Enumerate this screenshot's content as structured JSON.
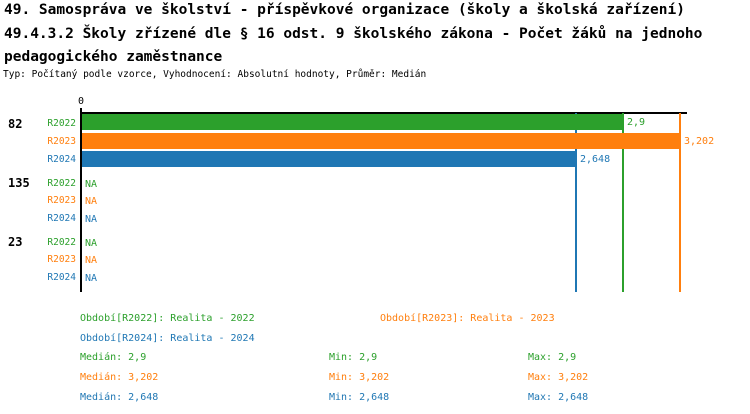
{
  "title": {
    "line1": "49. Samospráva ve školství - příspěvkové organizace (školy a školská zařízení)",
    "line2": "49.4.3.2 Školy zřízené dle § 16 odst. 9 školského zákona - Počet žáků na jednoho",
    "line3": "pedagogického zaměstnance",
    "meta": "Typ: Počítaný podle vzorce, Vyhodnocení: Absolutní hodnoty, Průměr: Medián"
  },
  "colors": {
    "r2022_green": "#2ca02c",
    "r2023_orange": "#ff7f0e",
    "r2024_blue": "#1f77b4",
    "axis_black": "#000000"
  },
  "chart_data": {
    "type": "bar",
    "orientation": "horizontal",
    "x_origin_label": "0",
    "xlim": [
      0,
      3.25
    ],
    "grid": false,
    "legend_position": "bottom",
    "series": [
      {
        "name": "R2022",
        "color": "#2ca02c",
        "median": 2.9,
        "min": 2.9,
        "max": 2.9
      },
      {
        "name": "R2023",
        "color": "#ff7f0e",
        "median": 3.202,
        "min": 3.202,
        "max": 3.202
      },
      {
        "name": "R2024",
        "color": "#1f77b4",
        "median": 2.648,
        "min": 2.648,
        "max": 2.648
      }
    ],
    "groups": [
      {
        "category": "82",
        "rows": [
          {
            "series": "R2022",
            "value": 2.9,
            "value_label": "2,9"
          },
          {
            "series": "R2023",
            "value": 3.202,
            "value_label": "3,202"
          },
          {
            "series": "R2024",
            "value": 2.648,
            "value_label": "2,648"
          }
        ]
      },
      {
        "category": "135",
        "rows": [
          {
            "series": "R2022",
            "value": null,
            "value_label": "NA"
          },
          {
            "series": "R2023",
            "value": null,
            "value_label": "NA"
          },
          {
            "series": "R2024",
            "value": null,
            "value_label": "NA"
          }
        ]
      },
      {
        "category": "23",
        "rows": [
          {
            "series": "R2022",
            "value": null,
            "value_label": "NA"
          },
          {
            "series": "R2023",
            "value": null,
            "value_label": "NA"
          },
          {
            "series": "R2024",
            "value": null,
            "value_label": "NA"
          }
        ]
      }
    ],
    "median_lines": [
      {
        "series": "R2022",
        "value": 2.9
      },
      {
        "series": "R2023",
        "value": 3.202
      },
      {
        "series": "R2024",
        "value": 2.648
      }
    ]
  },
  "legend": {
    "periods": [
      "Období[R2022]: Realita - 2022",
      "Období[R2023]: Realita - 2023",
      "Období[R2024]: Realita - 2024"
    ],
    "stats": [
      {
        "median": "Medián: 2,9",
        "min": "Min: 2,9",
        "max": "Max: 2,9"
      },
      {
        "median": "Medián: 3,202",
        "min": "Min: 3,202",
        "max": "Max: 3,202"
      },
      {
        "median": "Medián: 2,648",
        "min": "Min: 2,648",
        "max": "Max: 2,648"
      }
    ]
  }
}
